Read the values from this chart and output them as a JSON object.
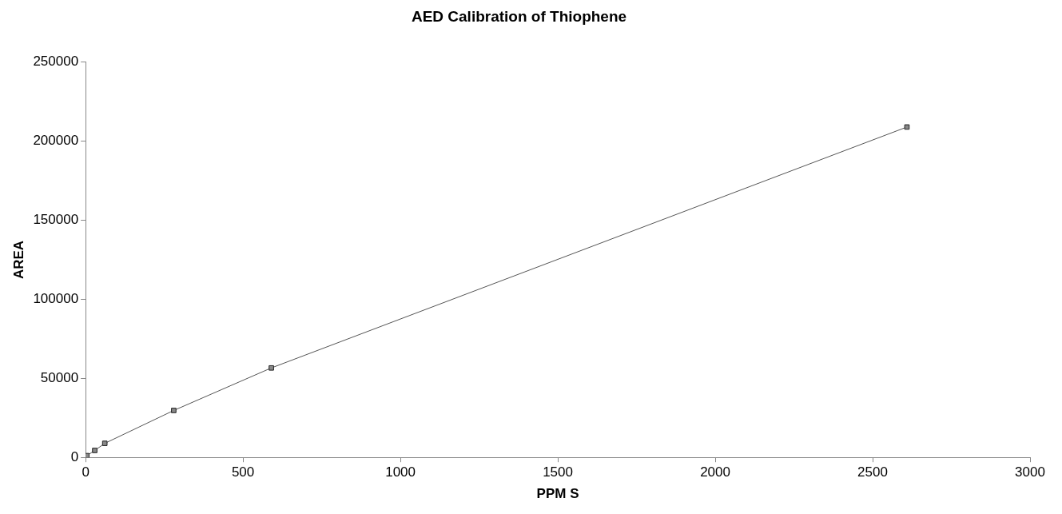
{
  "chart_data": {
    "type": "line",
    "title": "AED Calibration of Thiophene",
    "xlabel": "PPM S",
    "ylabel": "AREA",
    "x": [
      4,
      29,
      61,
      280,
      590,
      2609
    ],
    "series": [
      {
        "color": "#555555",
        "values": [
          1100,
          4400,
          8900,
          29700,
          56600,
          209000
        ]
      }
    ],
    "xlim": [
      0,
      3000
    ],
    "xticks": [
      0,
      500,
      1000,
      1500,
      2000,
      2500,
      3000
    ],
    "ylim": [
      0,
      250000
    ],
    "yticks": [
      0,
      50000,
      100000,
      150000,
      200000,
      250000
    ],
    "marker": "square",
    "grid": false,
    "legend": false
  }
}
